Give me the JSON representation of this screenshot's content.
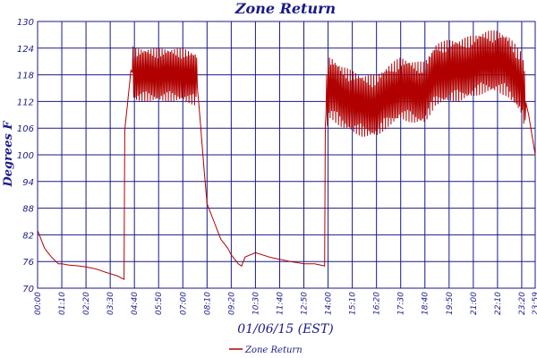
{
  "chart_data": {
    "type": "line",
    "title": "Zone Return",
    "xlabel": "01/06/15 (EST)",
    "ylabel": "Degrees F",
    "ylim": [
      70,
      130
    ],
    "yticks": [
      70,
      76,
      82,
      88,
      94,
      100,
      106,
      112,
      118,
      124,
      130
    ],
    "xticks": [
      "00:00",
      "01:10",
      "02:20",
      "03:30",
      "04:40",
      "05:50",
      "07:00",
      "08:10",
      "09:20",
      "10:30",
      "11:40",
      "12:50",
      "14:00",
      "15:10",
      "16:20",
      "17:30",
      "18:40",
      "19:50",
      "21:00",
      "22:10",
      "23:20",
      "23:59"
    ],
    "grid": true,
    "legend_position": "bottom",
    "colors": {
      "series": "#b00000",
      "grid": "#1a1a8a",
      "text": "#1a1a8a"
    },
    "series": [
      {
        "name": "Zone Return",
        "x": [
          "00:00",
          "00:20",
          "00:40",
          "01:00",
          "01:10",
          "01:30",
          "02:00",
          "02:20",
          "02:50",
          "03:20",
          "03:50",
          "04:10",
          "04:10",
          "04:30",
          "04:40",
          "05:00",
          "05:50",
          "06:30",
          "07:00",
          "07:40",
          "07:50",
          "08:00",
          "08:10",
          "08:30",
          "08:50",
          "09:10",
          "09:20",
          "09:40",
          "09:50",
          "10:00",
          "10:30",
          "10:50",
          "11:10",
          "11:40",
          "12:10",
          "12:50",
          "13:20",
          "13:50",
          "13:50",
          "14:00",
          "14:10",
          "14:40",
          "15:10",
          "15:40",
          "16:20",
          "16:50",
          "17:30",
          "18:10",
          "18:40",
          "19:10",
          "19:50",
          "20:20",
          "21:00",
          "21:40",
          "22:10",
          "22:40",
          "23:20",
          "23:40",
          "23:59"
        ],
        "values": [
          83,
          79,
          77,
          75.5,
          75.5,
          75.2,
          75,
          74.8,
          74.3,
          73.5,
          72.8,
          72,
          104,
          119,
          118,
          118,
          118,
          118,
          118,
          117,
          108,
          98,
          89,
          85,
          81,
          79,
          77.5,
          75.5,
          75,
          77,
          78,
          77.5,
          77,
          76.5,
          76,
          75.5,
          75.5,
          75,
          105,
          115,
          115,
          113,
          112,
          111,
          111,
          113,
          115,
          114,
          114,
          118,
          119,
          119,
          120,
          121,
          121,
          120,
          116,
          109,
          100
        ]
      }
    ]
  }
}
